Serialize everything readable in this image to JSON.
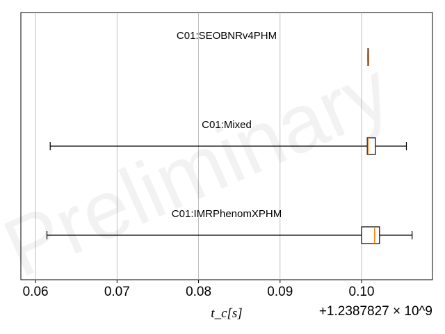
{
  "chart_data": {
    "type": "boxplot",
    "orientation": "horizontal",
    "xlabel": "t_c[s]",
    "offset_label": "+1.2387827 × 10^9",
    "xlim": [
      0.0582,
      0.1087
    ],
    "xticks": [
      0.06,
      0.07,
      0.08,
      0.09,
      0.1
    ],
    "xtick_labels": [
      "0.06",
      "0.07",
      "0.08",
      "0.09",
      "0.10"
    ],
    "grid": "x-major",
    "watermark": "Preliminary",
    "colors": {
      "box": "#000000",
      "median": "#ff7f0e",
      "grid": "#b0b0b0"
    },
    "series": [
      {
        "name": "C01:SEOBNRv4PHM",
        "whisker_low": 0.10075,
        "q1": 0.10075,
        "median": 0.10077,
        "q3": 0.1008,
        "whisker_high": 0.1008
      },
      {
        "name": "C01:Mixed",
        "whisker_low": 0.0618,
        "q1": 0.1007,
        "median": 0.1008,
        "q3": 0.1017,
        "whisker_high": 0.1055
      },
      {
        "name": "C01:IMRPhenomXPHM",
        "whisker_low": 0.0614,
        "q1": 0.1,
        "median": 0.1016,
        "q3": 0.1022,
        "whisker_high": 0.1062
      }
    ]
  }
}
